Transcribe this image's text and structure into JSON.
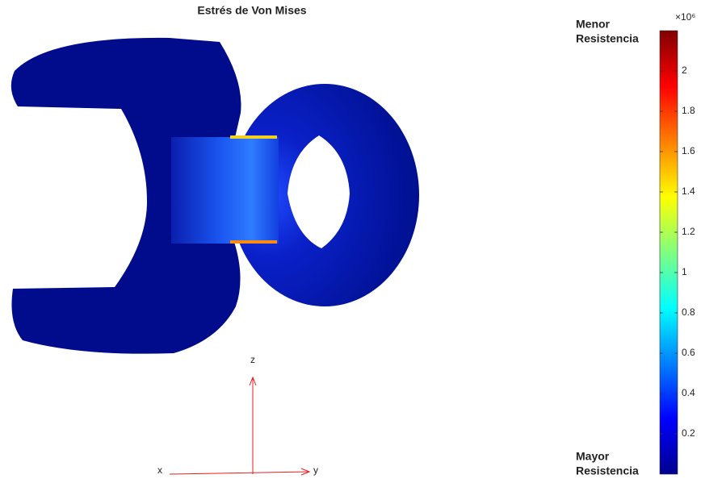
{
  "chart_data": {
    "type": "surface",
    "title": "Estrés de Von Mises",
    "colormap": "jet",
    "clim": [
      0,
      2.2
    ],
    "cticks": [
      0.2,
      0.4,
      0.6,
      0.8,
      1,
      1.2,
      1.4,
      1.6,
      1.8,
      2
    ],
    "colorbar_exponent": "×10⁶",
    "colorbar_top_label": [
      "Menor",
      "Resistencia"
    ],
    "colorbar_bottom_label": [
      "Mayor",
      "Resistencia"
    ],
    "axis_labels": {
      "x": "x",
      "y": "y",
      "z": "z"
    }
  }
}
